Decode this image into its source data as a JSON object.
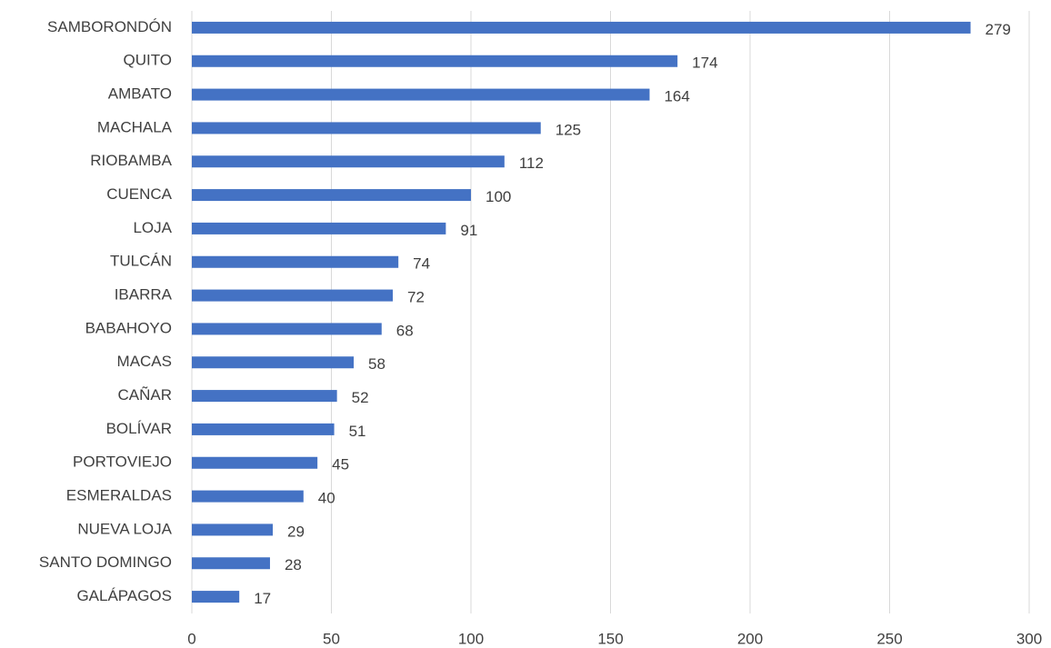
{
  "chart_data": {
    "type": "bar",
    "orientation": "horizontal",
    "categories": [
      "SAMBORONDÓN",
      "QUITO",
      "AMBATO",
      "MACHALA",
      "RIOBAMBA",
      "CUENCA",
      "LOJA",
      "TULCÁN",
      "IBARRA",
      "BABAHOYO",
      "MACAS",
      "CAÑAR",
      "BOLÍVAR",
      "PORTOVIEJO",
      "ESMERALDAS",
      "NUEVA LOJA",
      "SANTO DOMINGO",
      "GALÁPAGOS"
    ],
    "values": [
      279,
      174,
      164,
      125,
      112,
      100,
      91,
      74,
      72,
      68,
      58,
      52,
      51,
      45,
      40,
      29,
      28,
      17
    ],
    "color": "#4472c4",
    "xlim": [
      0,
      300
    ],
    "xticks": [
      0,
      50,
      100,
      150,
      200,
      250,
      300
    ],
    "grid": true
  }
}
